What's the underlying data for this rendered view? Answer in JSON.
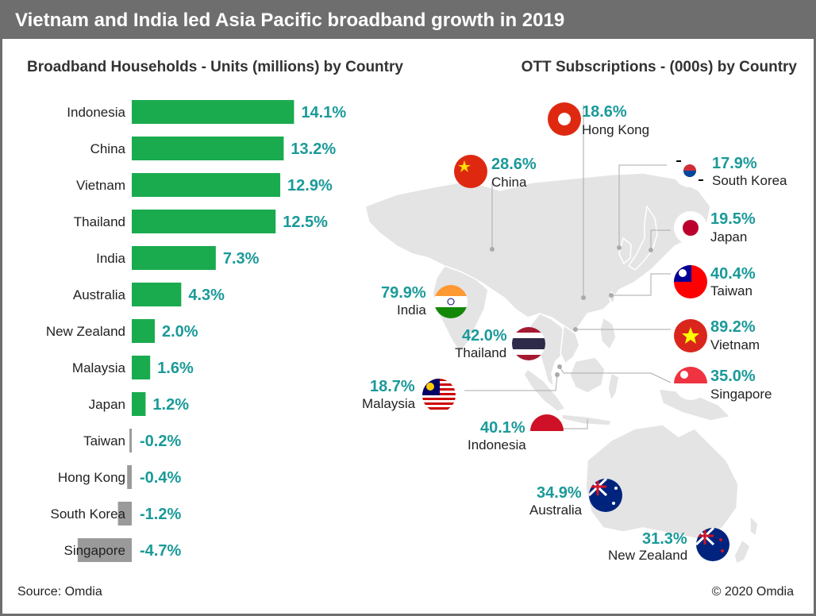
{
  "header": {
    "title": "Vietnam and India led Asia Pacific broadband growth in 2019"
  },
  "left_panel": {
    "subtitle": "Broadband Households - Units (millions) by Country"
  },
  "right_panel": {
    "subtitle": "OTT Subscriptions - (000s) by Country"
  },
  "footer": {
    "source": "Source: Omdia",
    "copyright": "© 2020 Omdia"
  },
  "colors": {
    "positive": "#1aab4f",
    "negative": "#9a9a9a",
    "label": "#1a9a99",
    "header": "#6e6e6e",
    "map": "#e4e4e4"
  },
  "chart_data": [
    {
      "type": "bar",
      "orientation": "horizontal",
      "title": "Broadband Households - Units (millions) by Country",
      "categories": [
        "Indonesia",
        "China",
        "Vietnam",
        "Thailand",
        "India",
        "Australia",
        "New Zealand",
        "Malaysia",
        "Japan",
        "Taiwan",
        "Hong Kong",
        "South Korea",
        "Singapore"
      ],
      "values": [
        14.1,
        13.2,
        12.9,
        12.5,
        7.3,
        4.3,
        2.0,
        1.6,
        1.2,
        -0.2,
        -0.4,
        -1.2,
        -4.7
      ],
      "value_labels": [
        "14.1%",
        "13.2%",
        "12.9%",
        "12.5%",
        "7.3%",
        "4.3%",
        "2.0%",
        "1.6%",
        "1.2%",
        "-0.2%",
        "-0.4%",
        "-1.2%",
        "-4.7%"
      ],
      "xlim": [
        -5,
        15
      ]
    },
    {
      "type": "table",
      "title": "OTT Subscriptions - (000s) by Country",
      "rows": [
        {
          "country": "Hong Kong",
          "value": 18.6,
          "label": "18.6%"
        },
        {
          "country": "China",
          "value": 28.6,
          "label": "28.6%"
        },
        {
          "country": "South Korea",
          "value": 17.9,
          "label": "17.9%"
        },
        {
          "country": "Japan",
          "value": 19.5,
          "label": "19.5%"
        },
        {
          "country": "Taiwan",
          "value": 40.4,
          "label": "40.4%"
        },
        {
          "country": "India",
          "value": 79.9,
          "label": "79.9%"
        },
        {
          "country": "Vietnam",
          "value": 89.2,
          "label": "89.2%"
        },
        {
          "country": "Thailand",
          "value": 42.0,
          "label": "42.0%"
        },
        {
          "country": "Singapore",
          "value": 35.0,
          "label": "35.0%"
        },
        {
          "country": "Malaysia",
          "value": 18.7,
          "label": "18.7%"
        },
        {
          "country": "Indonesia",
          "value": 40.1,
          "label": "40.1%"
        },
        {
          "country": "Australia",
          "value": 34.9,
          "label": "34.9%"
        },
        {
          "country": "New Zealand",
          "value": 31.3,
          "label": "31.3%"
        }
      ]
    }
  ]
}
